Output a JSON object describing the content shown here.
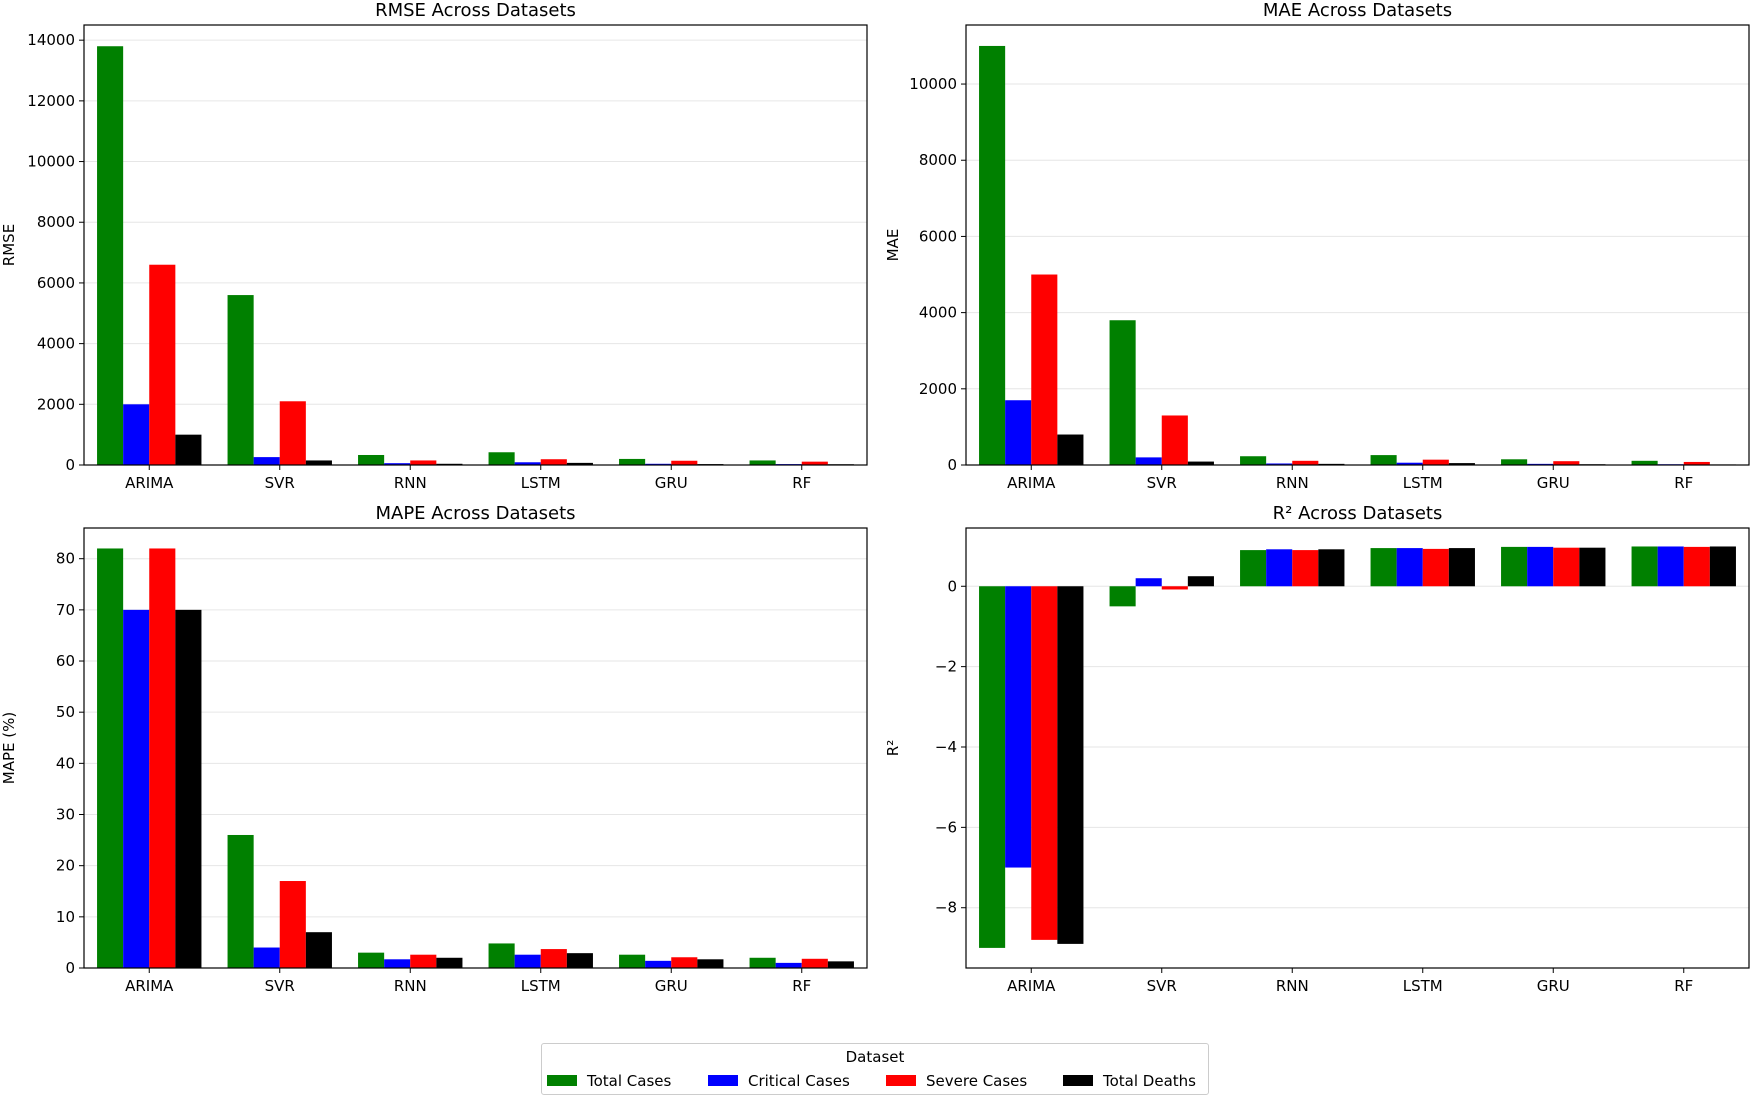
{
  "chart_data": [
    {
      "type": "bar",
      "title": "RMSE Across Datasets",
      "xlabel": "",
      "ylabel": "RMSE",
      "ylim": [
        0,
        14500
      ],
      "yticks": [
        0,
        2000,
        4000,
        6000,
        8000,
        10000,
        12000,
        14000
      ],
      "categories": [
        "ARIMA",
        "SVR",
        "RNN",
        "LSTM",
        "GRU",
        "RF"
      ],
      "series": [
        {
          "name": "Total Cases",
          "values": [
            13800,
            5600,
            330,
            420,
            200,
            150
          ]
        },
        {
          "name": "Critical Cases",
          "values": [
            2000,
            260,
            60,
            90,
            40,
            30
          ]
        },
        {
          "name": "Severe Cases",
          "values": [
            6600,
            2100,
            150,
            190,
            140,
            110
          ]
        },
        {
          "name": "Total Deaths",
          "values": [
            1000,
            150,
            40,
            70,
            30,
            25
          ]
        }
      ]
    },
    {
      "type": "bar",
      "title": "MAE Across Datasets",
      "xlabel": "",
      "ylabel": "MAE",
      "ylim": [
        0,
        11550
      ],
      "yticks": [
        0,
        2000,
        4000,
        6000,
        8000,
        10000
      ],
      "categories": [
        "ARIMA",
        "SVR",
        "RNN",
        "LSTM",
        "GRU",
        "RF"
      ],
      "series": [
        {
          "name": "Total Cases",
          "values": [
            11000,
            3800,
            230,
            260,
            150,
            110
          ]
        },
        {
          "name": "Critical Cases",
          "values": [
            1700,
            200,
            40,
            60,
            30,
            20
          ]
        },
        {
          "name": "Severe Cases",
          "values": [
            5000,
            1300,
            110,
            140,
            100,
            80
          ]
        },
        {
          "name": "Total Deaths",
          "values": [
            800,
            90,
            30,
            50,
            20,
            15
          ]
        }
      ]
    },
    {
      "type": "bar",
      "title": "MAPE Across Datasets",
      "xlabel": "",
      "ylabel": "MAPE (%)",
      "ylim": [
        0,
        86
      ],
      "yticks": [
        0,
        10,
        20,
        30,
        40,
        50,
        60,
        70,
        80
      ],
      "categories": [
        "ARIMA",
        "SVR",
        "RNN",
        "LSTM",
        "GRU",
        "RF"
      ],
      "series": [
        {
          "name": "Total Cases",
          "values": [
            82,
            26,
            3,
            4.8,
            2.6,
            2
          ]
        },
        {
          "name": "Critical Cases",
          "values": [
            70,
            4,
            1.7,
            2.6,
            1.4,
            1
          ]
        },
        {
          "name": "Severe Cases",
          "values": [
            82,
            17,
            2.6,
            3.7,
            2.1,
            1.8
          ]
        },
        {
          "name": "Total Deaths",
          "values": [
            70,
            7,
            2,
            2.9,
            1.7,
            1.3
          ]
        }
      ]
    },
    {
      "type": "bar",
      "title": "R² Across Datasets",
      "xlabel": "",
      "ylabel": "R²",
      "ylim": [
        -9.5,
        1.45
      ],
      "yticks": [
        0,
        -2,
        -4,
        -6,
        -8
      ],
      "ytick_labels": [
        "0",
        "−2",
        "−4",
        "−6",
        "−8"
      ],
      "categories": [
        "ARIMA",
        "SVR",
        "RNN",
        "LSTM",
        "GRU",
        "RF"
      ],
      "series": [
        {
          "name": "Total Cases",
          "values": [
            -9,
            -0.5,
            0.9,
            0.95,
            0.98,
            0.99
          ]
        },
        {
          "name": "Critical Cases",
          "values": [
            -7,
            0.2,
            0.92,
            0.95,
            0.98,
            0.99
          ]
        },
        {
          "name": "Severe Cases",
          "values": [
            -8.8,
            -0.08,
            0.9,
            0.93,
            0.96,
            0.98
          ]
        },
        {
          "name": "Total Deaths",
          "values": [
            -8.9,
            0.25,
            0.92,
            0.95,
            0.96,
            0.99
          ]
        }
      ]
    }
  ],
  "legend": {
    "title": "Dataset",
    "items": [
      {
        "label": "Total Cases",
        "color": "#008000"
      },
      {
        "label": "Critical Cases",
        "color": "#0000ff"
      },
      {
        "label": "Severe Cases",
        "color": "#ff0000"
      },
      {
        "label": "Total Deaths",
        "color": "#000000"
      }
    ]
  }
}
